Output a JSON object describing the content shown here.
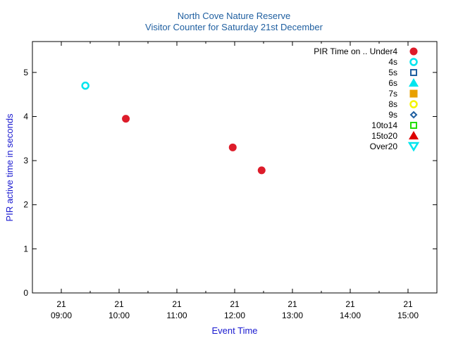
{
  "chart_data": {
    "type": "scatter",
    "title": "North Cove Nature Reserve",
    "subtitle": "Visitor Counter for Saturday 21st December",
    "xlabel": "Event Time",
    "ylabel": "PIR active time in seconds",
    "xlim": [
      "08:30",
      "15:30"
    ],
    "ylim": [
      0,
      5.7
    ],
    "x_ticks": [
      {
        "value": "09:00",
        "day": "21",
        "time": "09:00"
      },
      {
        "value": "10:00",
        "day": "21",
        "time": "10:00"
      },
      {
        "value": "11:00",
        "day": "21",
        "time": "11:00"
      },
      {
        "value": "12:00",
        "day": "21",
        "time": "12:00"
      },
      {
        "value": "13:00",
        "day": "21",
        "time": "13:00"
      },
      {
        "value": "14:00",
        "day": "21",
        "time": "14:00"
      },
      {
        "value": "15:00",
        "day": "21",
        "time": "15:00"
      }
    ],
    "y_ticks": [
      "0",
      "1",
      "2",
      "3",
      "4",
      "5"
    ],
    "legend_title": "PIR Time on ..",
    "legend_position": "top-right",
    "grid": false,
    "series": [
      {
        "name": "Under4",
        "color": "#dd1c2a",
        "marker": "filled-circle",
        "points": [
          {
            "x": "10:07",
            "y": 3.95
          },
          {
            "x": "11:58",
            "y": 3.3
          },
          {
            "x": "12:28",
            "y": 2.78
          }
        ]
      },
      {
        "name": "4s",
        "color": "#00e5ee",
        "marker": "open-circle",
        "points": [
          {
            "x": "09:25",
            "y": 4.7
          }
        ]
      },
      {
        "name": "5s",
        "color": "#1f5fa0",
        "marker": "open-square",
        "points": []
      },
      {
        "name": "6s",
        "color": "#00e5ee",
        "marker": "filled-triangle-up",
        "points": []
      },
      {
        "name": "7s",
        "color": "#e8a000",
        "marker": "filled-square",
        "points": []
      },
      {
        "name": "8s",
        "color": "#f5f500",
        "marker": "open-circle",
        "points": []
      },
      {
        "name": "9s",
        "color": "#1f5fa0",
        "marker": "open-diamond",
        "points": []
      },
      {
        "name": "10to14",
        "color": "#22dd00",
        "marker": "open-square",
        "points": []
      },
      {
        "name": "15to20",
        "color": "#dd0000",
        "marker": "filled-triangle-up",
        "points": []
      },
      {
        "name": "Over20",
        "color": "#00e5ee",
        "marker": "open-triangle-down",
        "points": []
      }
    ]
  }
}
